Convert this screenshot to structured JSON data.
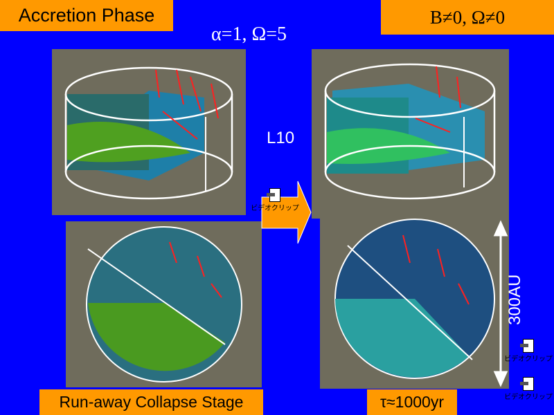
{
  "slide": {
    "title": "Accretion Phase",
    "condition": "B≠0, Ω≠0",
    "parameters": "α=1,  Ω=5",
    "model_label": "L10",
    "scale_label": "300AU",
    "bottom_left_caption": "Run-away Collapse Stage",
    "bottom_right_caption": "τ≈1000yr"
  },
  "video_clips": [
    {
      "label": "ビデオクリップ",
      "icon": "video-clip-icon"
    },
    {
      "label": "ビデオクリップ",
      "icon": "video-clip-icon"
    },
    {
      "label": "ビデオクリップ",
      "icon": "video-clip-icon"
    }
  ],
  "colors": {
    "background": "#0000ff",
    "label_box": "#ff9900",
    "panel": "#6f6c5c",
    "vectors": "#ff2020"
  }
}
